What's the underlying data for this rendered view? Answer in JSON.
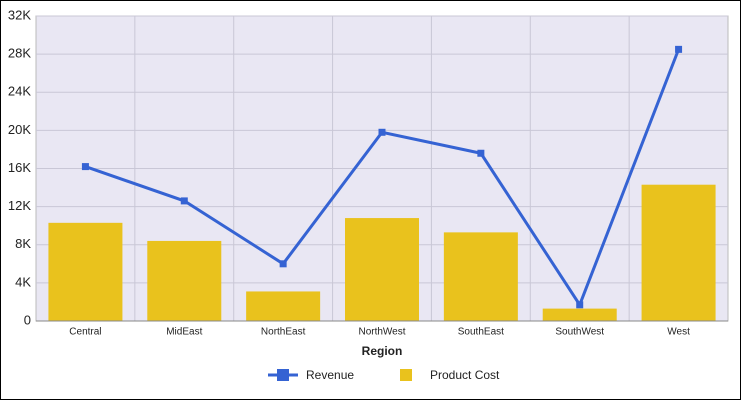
{
  "chart_data": {
    "type": "combo",
    "x_label": "Region",
    "categories": [
      "Central",
      "MidEast",
      "NorthEast",
      "NorthWest",
      "SouthEast",
      "SouthWest",
      "West"
    ],
    "series": [
      {
        "name": "Revenue",
        "type": "line",
        "color": "#3563d3",
        "values": [
          16200,
          12600,
          6000,
          19800,
          17600,
          1700,
          28500
        ]
      },
      {
        "name": "Product Cost",
        "type": "bar",
        "color": "#e9c21d",
        "values": [
          10300,
          8400,
          3100,
          10800,
          9300,
          1300,
          14300
        ]
      }
    ],
    "ylim": [
      0,
      32000
    ],
    "yticks": [
      0,
      {
        "value": 4000,
        "label": "4K"
      },
      {
        "value": 8000,
        "label": "8K"
      },
      {
        "value": 12000,
        "label": "12K"
      },
      {
        "value": 16000,
        "label": "16K"
      },
      {
        "value": 20000,
        "label": "20K"
      },
      {
        "value": 24000,
        "label": "24K"
      },
      {
        "value": 28000,
        "label": "28K"
      },
      {
        "value": 32000,
        "label": "32K"
      }
    ],
    "grid": true
  }
}
